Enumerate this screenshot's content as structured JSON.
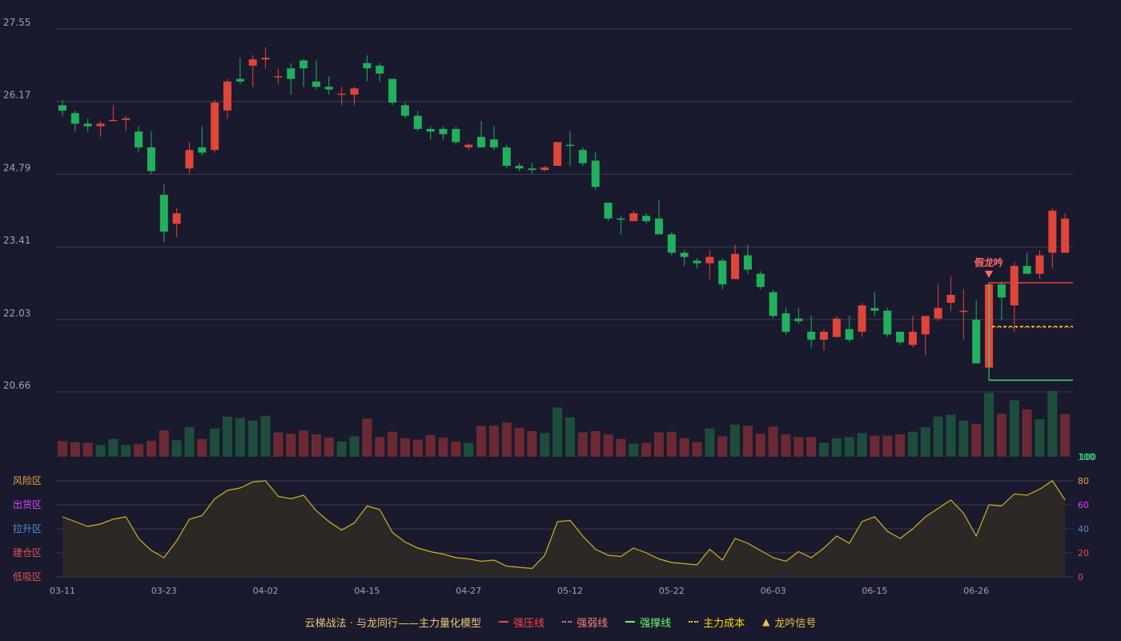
{
  "chart_data": {
    "type": "candlestick",
    "price_ticks": [
      "27.55",
      "26.17",
      "24.79",
      "23.41",
      "22.03",
      "20.66"
    ],
    "date_labels": [
      {
        "i": 0,
        "label": "03-11"
      },
      {
        "i": 8,
        "label": "03-23"
      },
      {
        "i": 16,
        "label": "04-02"
      },
      {
        "i": 24,
        "label": "04-15"
      },
      {
        "i": 32,
        "label": "04-27"
      },
      {
        "i": 40,
        "label": "05-12"
      },
      {
        "i": 48,
        "label": "05-22"
      },
      {
        "i": 56,
        "label": "06-03"
      },
      {
        "i": 64,
        "label": "06-15"
      },
      {
        "i": 72,
        "label": "06-26"
      }
    ],
    "candles": [
      [
        26.1,
        26.0,
        26.2,
        25.9
      ],
      [
        25.95,
        25.75,
        26.0,
        25.6
      ],
      [
        25.75,
        25.7,
        25.85,
        25.6
      ],
      [
        25.7,
        25.75,
        25.8,
        25.5
      ],
      [
        25.8,
        25.82,
        26.1,
        25.8
      ],
      [
        25.82,
        25.85,
        25.9,
        25.6
      ],
      [
        25.6,
        25.3,
        25.7,
        25.2
      ],
      [
        25.3,
        24.85,
        25.6,
        24.8
      ],
      [
        24.4,
        23.7,
        24.6,
        23.5
      ],
      [
        23.85,
        24.05,
        24.15,
        23.6
      ],
      [
        24.9,
        25.25,
        25.4,
        24.8
      ],
      [
        25.3,
        25.2,
        25.7,
        25.15
      ],
      [
        25.25,
        26.15,
        26.2,
        25.2
      ],
      [
        26.0,
        26.55,
        26.6,
        25.85
      ],
      [
        26.6,
        26.55,
        27.0,
        26.5
      ],
      [
        26.85,
        26.97,
        27.05,
        26.45
      ],
      [
        26.97,
        27.0,
        27.2,
        26.8
      ],
      [
        26.65,
        26.65,
        26.8,
        26.5
      ],
      [
        26.8,
        26.6,
        26.9,
        26.3
      ],
      [
        26.95,
        26.8,
        26.98,
        26.45
      ],
      [
        26.55,
        26.45,
        26.95,
        26.4
      ],
      [
        26.45,
        26.4,
        26.65,
        26.3
      ],
      [
        26.3,
        26.32,
        26.45,
        26.1
      ],
      [
        26.3,
        26.42,
        26.45,
        26.1
      ],
      [
        26.9,
        26.8,
        27.05,
        26.55
      ],
      [
        26.85,
        26.7,
        26.9,
        26.55
      ],
      [
        26.6,
        26.15,
        26.6,
        26.1
      ],
      [
        26.1,
        25.9,
        26.15,
        25.85
      ],
      [
        25.9,
        25.65,
        26.0,
        25.6
      ],
      [
        25.65,
        25.6,
        25.7,
        25.45
      ],
      [
        25.65,
        25.55,
        25.7,
        25.45
      ],
      [
        25.65,
        25.4,
        25.7,
        25.35
      ],
      [
        25.3,
        25.35,
        25.38,
        25.25
      ],
      [
        25.5,
        25.3,
        25.8,
        25.3
      ],
      [
        25.45,
        25.3,
        25.7,
        25.25
      ],
      [
        25.3,
        24.95,
        25.35,
        24.9
      ],
      [
        24.95,
        24.9,
        25.0,
        24.85
      ],
      [
        24.9,
        24.87,
        25.0,
        24.8
      ],
      [
        24.87,
        24.92,
        24.95,
        24.85
      ],
      [
        24.95,
        25.4,
        25.4,
        24.95
      ],
      [
        25.35,
        25.33,
        25.6,
        24.95
      ],
      [
        25.25,
        25.0,
        25.3,
        24.95
      ],
      [
        25.05,
        24.55,
        25.2,
        24.5
      ],
      [
        24.25,
        23.95,
        24.25,
        23.9
      ],
      [
        23.95,
        23.93,
        24.0,
        23.65
      ],
      [
        23.9,
        24.05,
        24.1,
        23.9
      ],
      [
        24.0,
        23.9,
        24.05,
        23.85
      ],
      [
        23.95,
        23.65,
        24.3,
        23.65
      ],
      [
        23.65,
        23.3,
        23.7,
        23.25
      ],
      [
        23.3,
        23.22,
        23.35,
        23.05
      ],
      [
        23.15,
        23.1,
        23.2,
        23.0
      ],
      [
        23.1,
        23.22,
        23.35,
        22.8
      ],
      [
        23.15,
        22.7,
        23.2,
        22.6
      ],
      [
        22.8,
        23.28,
        23.45,
        22.8
      ],
      [
        23.25,
        22.98,
        23.45,
        22.9
      ],
      [
        22.9,
        22.65,
        22.95,
        22.6
      ],
      [
        22.55,
        22.1,
        22.6,
        22.05
      ],
      [
        22.15,
        21.8,
        22.25,
        21.75
      ],
      [
        22.05,
        22.0,
        22.25,
        21.95
      ],
      [
        21.8,
        21.65,
        22.1,
        21.5
      ],
      [
        21.65,
        21.8,
        21.85,
        21.45
      ],
      [
        21.7,
        22.05,
        22.1,
        21.7
      ],
      [
        21.85,
        21.65,
        22.1,
        21.6
      ],
      [
        21.8,
        22.3,
        22.35,
        21.7
      ],
      [
        22.25,
        22.2,
        22.55,
        22.1
      ],
      [
        22.2,
        21.75,
        22.25,
        21.7
      ],
      [
        21.8,
        21.6,
        21.8,
        21.55
      ],
      [
        21.55,
        21.8,
        22.1,
        21.5
      ],
      [
        21.75,
        22.1,
        22.1,
        21.35
      ],
      [
        22.05,
        22.25,
        22.7,
        22.0
      ],
      [
        22.35,
        22.5,
        22.85,
        22.2
      ],
      [
        22.2,
        22.2,
        22.6,
        21.65
      ],
      [
        22.03,
        21.2,
        22.4,
        21.2
      ],
      [
        21.12,
        22.7,
        22.73,
        21.12
      ],
      [
        22.7,
        22.45,
        22.75,
        22.03
      ],
      [
        22.3,
        23.05,
        23.12,
        21.8
      ],
      [
        23.05,
        22.9,
        23.3,
        22.9
      ],
      [
        22.9,
        23.25,
        23.35,
        22.8
      ],
      [
        23.3,
        24.1,
        24.15,
        23.0
      ],
      [
        23.3,
        23.95,
        24.05,
        23.7
      ]
    ],
    "volume": [
      [
        0.24,
        "r"
      ],
      [
        0.22,
        "r"
      ],
      [
        0.21,
        "r"
      ],
      [
        0.18,
        "g"
      ],
      [
        0.27,
        "g"
      ],
      [
        0.18,
        "g"
      ],
      [
        0.19,
        "r"
      ],
      [
        0.24,
        "r"
      ],
      [
        0.4,
        "r"
      ],
      [
        0.25,
        "g"
      ],
      [
        0.45,
        "g"
      ],
      [
        0.27,
        "r"
      ],
      [
        0.43,
        "g"
      ],
      [
        0.61,
        "g"
      ],
      [
        0.59,
        "g"
      ],
      [
        0.55,
        "g"
      ],
      [
        0.62,
        "g"
      ],
      [
        0.37,
        "r"
      ],
      [
        0.35,
        "r"
      ],
      [
        0.4,
        "r"
      ],
      [
        0.34,
        "r"
      ],
      [
        0.29,
        "r"
      ],
      [
        0.23,
        "g"
      ],
      [
        0.31,
        "g"
      ],
      [
        0.58,
        "r"
      ],
      [
        0.3,
        "r"
      ],
      [
        0.38,
        "r"
      ],
      [
        0.28,
        "r"
      ],
      [
        0.26,
        "r"
      ],
      [
        0.33,
        "r"
      ],
      [
        0.29,
        "r"
      ],
      [
        0.23,
        "r"
      ],
      [
        0.21,
        "g"
      ],
      [
        0.47,
        "r"
      ],
      [
        0.47,
        "r"
      ],
      [
        0.52,
        "r"
      ],
      [
        0.44,
        "r"
      ],
      [
        0.39,
        "r"
      ],
      [
        0.36,
        "g"
      ],
      [
        0.75,
        "g"
      ],
      [
        0.6,
        "g"
      ],
      [
        0.37,
        "r"
      ],
      [
        0.39,
        "r"
      ],
      [
        0.34,
        "r"
      ],
      [
        0.27,
        "r"
      ],
      [
        0.2,
        "g"
      ],
      [
        0.21,
        "r"
      ],
      [
        0.37,
        "r"
      ],
      [
        0.38,
        "r"
      ],
      [
        0.28,
        "r"
      ],
      [
        0.22,
        "r"
      ],
      [
        0.43,
        "g"
      ],
      [
        0.31,
        "r"
      ],
      [
        0.49,
        "g"
      ],
      [
        0.47,
        "r"
      ],
      [
        0.35,
        "r"
      ],
      [
        0.46,
        "r"
      ],
      [
        0.34,
        "r"
      ],
      [
        0.3,
        "r"
      ],
      [
        0.3,
        "r"
      ],
      [
        0.21,
        "g"
      ],
      [
        0.28,
        "g"
      ],
      [
        0.3,
        "g"
      ],
      [
        0.36,
        "g"
      ],
      [
        0.32,
        "r"
      ],
      [
        0.32,
        "r"
      ],
      [
        0.34,
        "r"
      ],
      [
        0.38,
        "g"
      ],
      [
        0.45,
        "g"
      ],
      [
        0.61,
        "g"
      ],
      [
        0.64,
        "g"
      ],
      [
        0.55,
        "g"
      ],
      [
        0.5,
        "r"
      ],
      [
        0.97,
        "g"
      ],
      [
        0.65,
        "r"
      ],
      [
        0.86,
        "g"
      ],
      [
        0.72,
        "r"
      ],
      [
        0.57,
        "g"
      ],
      [
        1.0,
        "g"
      ],
      [
        0.65,
        "r"
      ]
    ],
    "volume_label": "100",
    "indicator": [
      50,
      46,
      42,
      44,
      48,
      50,
      32,
      22,
      16,
      30,
      48,
      51,
      65,
      72,
      74,
      79,
      80,
      67,
      65,
      68,
      55,
      46,
      39,
      45,
      59,
      56,
      37,
      29,
      24,
      21,
      19,
      16,
      15,
      13,
      14,
      9,
      8,
      7,
      18,
      46,
      47,
      34,
      23,
      18,
      17,
      24,
      20,
      15,
      12,
      11,
      10,
      23,
      14,
      32,
      28,
      22,
      16,
      13,
      21,
      16,
      24,
      34,
      28,
      46,
      50,
      38,
      32,
      40,
      50,
      57,
      64,
      53,
      34,
      60,
      59,
      69,
      68,
      73,
      80,
      64
    ],
    "indicator_ticks": [
      {
        "value": "100",
        "color": "#3ddc84"
      },
      {
        "value": "80",
        "color": "#f0a040"
      },
      {
        "value": "60",
        "color": "#e040fb"
      },
      {
        "value": "40",
        "color": "#4a90e2"
      },
      {
        "value": "20",
        "color": "#e05555"
      },
      {
        "value": "0",
        "color": "#e05555"
      }
    ],
    "zones": [
      {
        "label": "风险区",
        "color": "#f0a040"
      },
      {
        "label": "出货区",
        "color": "#e040fb"
      },
      {
        "label": "拉升区",
        "color": "#4a90e2"
      },
      {
        "label": "建仓区",
        "color": "#e05555"
      },
      {
        "label": "低吸区",
        "color": "#e05555"
      }
    ],
    "signal": {
      "label": "假龙吟",
      "index": 73
    },
    "levels": {
      "pressure": 22.73,
      "weak": 21.88,
      "cost": 21.9,
      "support": 20.88
    }
  },
  "colors": {
    "background": "#1a1a2e",
    "grid": "#3a3a50",
    "up": "#e0453a",
    "down": "#21b05c",
    "vol_up": "#6b2a33",
    "vol_down": "#1e4d3c",
    "axis_text": "#a0a0b0",
    "indicator_line": "#d4b020",
    "indicator_fill": "#2e2a26"
  },
  "legend": {
    "title": "云梯战法 · 与龙同行——主力量化模型",
    "items": [
      {
        "name": "line-pressure",
        "label": "强压线",
        "color": "#ff4444",
        "style": "solid"
      },
      {
        "name": "line-weak",
        "label": "强弱线",
        "color": "#ff8080",
        "style": "dotted"
      },
      {
        "name": "line-support",
        "label": "强撑线",
        "color": "#66ff66",
        "style": "solid"
      },
      {
        "name": "line-cost",
        "label": "主力成本",
        "color": "#ffd700",
        "style": "dotted"
      },
      {
        "name": "signal",
        "label": "龙吟信号",
        "color": "#f0c040",
        "style": "triangle"
      }
    ]
  }
}
